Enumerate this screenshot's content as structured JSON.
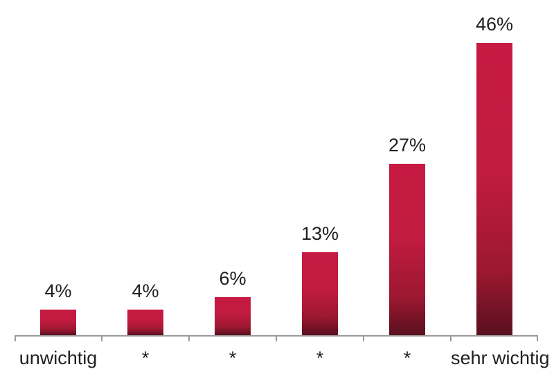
{
  "chart_data": {
    "type": "bar",
    "categories": [
      "unwichtig",
      "*",
      "*",
      "*",
      "*",
      "sehr wichtig"
    ],
    "values": [
      4,
      4,
      6,
      13,
      27,
      46
    ],
    "value_labels": [
      "4%",
      "4%",
      "6%",
      "13%",
      "27%",
      "46%"
    ],
    "title": "",
    "xlabel": "",
    "ylabel": "",
    "ylim": [
      0,
      46
    ],
    "grid": false,
    "legend_position": "none",
    "colors": {
      "bar_gradient_top": "#c61a43",
      "bar_gradient_upper_mid": "#c01b40",
      "bar_gradient_lower_mid": "#9c1830",
      "bar_gradient_bottom": "#5a1020",
      "axis_line": "#9a9a9a",
      "label_text": "#1f1f1f"
    }
  }
}
